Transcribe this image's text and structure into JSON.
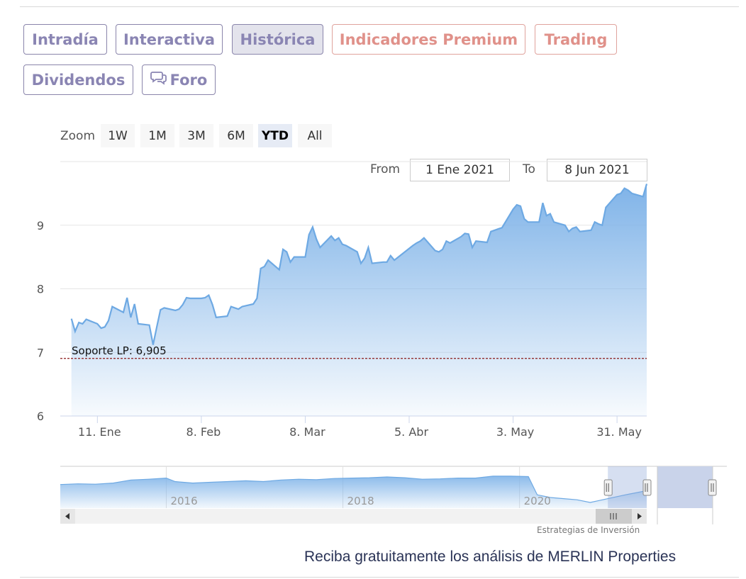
{
  "tabs": [
    {
      "label": "Intradía"
    },
    {
      "label": "Interactiva"
    },
    {
      "label": "Histórica"
    },
    {
      "label": "Indicadores Premium"
    },
    {
      "label": "Trading"
    },
    {
      "label": "Dividendos"
    },
    {
      "label": "Foro"
    }
  ],
  "active_tab": "Histórica",
  "zoom": {
    "label": "Zoom",
    "buttons": [
      "1W",
      "1M",
      "3M",
      "6M",
      "YTD",
      "All"
    ],
    "selected": "YTD"
  },
  "range": {
    "from_label": "From",
    "from_value": "1 Ene 2021",
    "to_label": "To",
    "to_value": "8 Jun 2021"
  },
  "chart_data": {
    "type": "area",
    "xlabel": "",
    "ylabel": "",
    "ylim": [
      6,
      10
    ],
    "yticks": [
      6,
      7,
      8,
      9
    ],
    "x_axis_type": "date",
    "x_range": [
      "2021-01-01",
      "2021-06-08"
    ],
    "xtick_labels": [
      {
        "date": "2021-01-11",
        "label": "11. Ene"
      },
      {
        "date": "2021-02-08",
        "label": "8. Feb"
      },
      {
        "date": "2021-03-08",
        "label": "8. Mar"
      },
      {
        "date": "2021-04-05",
        "label": "5. Abr"
      },
      {
        "date": "2021-05-03",
        "label": "3. May"
      },
      {
        "date": "2021-05-31",
        "label": "31. May"
      }
    ],
    "series": [
      {
        "values": [
          [
            "2021-01-04",
            7.53
          ],
          [
            "2021-01-05",
            7.33
          ],
          [
            "2021-01-06",
            7.47
          ],
          [
            "2021-01-07",
            7.45
          ],
          [
            "2021-01-08",
            7.52
          ],
          [
            "2021-01-11",
            7.45
          ],
          [
            "2021-01-12",
            7.38
          ],
          [
            "2021-01-13",
            7.4
          ],
          [
            "2021-01-14",
            7.5
          ],
          [
            "2021-01-15",
            7.72
          ],
          [
            "2021-01-18",
            7.63
          ],
          [
            "2021-01-19",
            7.86
          ],
          [
            "2021-01-20",
            7.55
          ],
          [
            "2021-01-21",
            7.76
          ],
          [
            "2021-01-22",
            7.45
          ],
          [
            "2021-01-25",
            7.43
          ],
          [
            "2021-01-26",
            7.12
          ],
          [
            "2021-01-27",
            7.4
          ],
          [
            "2021-01-28",
            7.67
          ],
          [
            "2021-01-29",
            7.7
          ],
          [
            "2021-02-01",
            7.66
          ],
          [
            "2021-02-02",
            7.68
          ],
          [
            "2021-02-03",
            7.75
          ],
          [
            "2021-02-04",
            7.86
          ],
          [
            "2021-02-05",
            7.85
          ],
          [
            "2021-02-08",
            7.85
          ],
          [
            "2021-02-09",
            7.86
          ],
          [
            "2021-02-10",
            7.9
          ],
          [
            "2021-02-11",
            7.75
          ],
          [
            "2021-02-12",
            7.55
          ],
          [
            "2021-02-15",
            7.57
          ],
          [
            "2021-02-16",
            7.72
          ],
          [
            "2021-02-17",
            7.7
          ],
          [
            "2021-02-18",
            7.68
          ],
          [
            "2021-02-19",
            7.72
          ],
          [
            "2021-02-22",
            7.76
          ],
          [
            "2021-02-23",
            7.85
          ],
          [
            "2021-02-24",
            8.32
          ],
          [
            "2021-02-25",
            8.35
          ],
          [
            "2021-02-26",
            8.45
          ],
          [
            "2021-03-01",
            8.3
          ],
          [
            "2021-03-02",
            8.62
          ],
          [
            "2021-03-03",
            8.58
          ],
          [
            "2021-03-04",
            8.42
          ],
          [
            "2021-03-05",
            8.5
          ],
          [
            "2021-03-08",
            8.5
          ],
          [
            "2021-03-09",
            8.85
          ],
          [
            "2021-03-10",
            8.97
          ],
          [
            "2021-03-11",
            8.78
          ],
          [
            "2021-03-12",
            8.65
          ],
          [
            "2021-03-15",
            8.83
          ],
          [
            "2021-03-16",
            8.76
          ],
          [
            "2021-03-17",
            8.8
          ],
          [
            "2021-03-18",
            8.7
          ],
          [
            "2021-03-19",
            8.68
          ],
          [
            "2021-03-22",
            8.58
          ],
          [
            "2021-03-23",
            8.4
          ],
          [
            "2021-03-24",
            8.48
          ],
          [
            "2021-03-25",
            8.65
          ],
          [
            "2021-03-26",
            8.4
          ],
          [
            "2021-03-29",
            8.42
          ],
          [
            "2021-03-30",
            8.42
          ],
          [
            "2021-03-31",
            8.52
          ],
          [
            "2021-04-01",
            8.45
          ],
          [
            "2021-04-06",
            8.68
          ],
          [
            "2021-04-07",
            8.72
          ],
          [
            "2021-04-08",
            8.75
          ],
          [
            "2021-04-09",
            8.8
          ],
          [
            "2021-04-12",
            8.6
          ],
          [
            "2021-04-13",
            8.58
          ],
          [
            "2021-04-14",
            8.62
          ],
          [
            "2021-04-15",
            8.75
          ],
          [
            "2021-04-16",
            8.72
          ],
          [
            "2021-04-19",
            8.82
          ],
          [
            "2021-04-20",
            8.87
          ],
          [
            "2021-04-21",
            8.86
          ],
          [
            "2021-04-22",
            8.65
          ],
          [
            "2021-04-23",
            8.75
          ],
          [
            "2021-04-26",
            8.73
          ],
          [
            "2021-04-27",
            8.9
          ],
          [
            "2021-04-28",
            8.92
          ],
          [
            "2021-04-29",
            8.94
          ],
          [
            "2021-04-30",
            8.96
          ],
          [
            "2021-05-03",
            9.25
          ],
          [
            "2021-05-04",
            9.32
          ],
          [
            "2021-05-05",
            9.3
          ],
          [
            "2021-05-06",
            9.1
          ],
          [
            "2021-05-07",
            9.05
          ],
          [
            "2021-05-10",
            9.05
          ],
          [
            "2021-05-11",
            9.35
          ],
          [
            "2021-05-12",
            9.15
          ],
          [
            "2021-05-13",
            9.18
          ],
          [
            "2021-05-14",
            9.05
          ],
          [
            "2021-05-17",
            9.0
          ],
          [
            "2021-05-18",
            8.9
          ],
          [
            "2021-05-19",
            8.95
          ],
          [
            "2021-05-20",
            8.97
          ],
          [
            "2021-05-21",
            8.9
          ],
          [
            "2021-05-24",
            8.92
          ],
          [
            "2021-05-25",
            9.05
          ],
          [
            "2021-05-26",
            9.02
          ],
          [
            "2021-05-27",
            9.0
          ],
          [
            "2021-05-28",
            9.28
          ],
          [
            "2021-05-31",
            9.48
          ],
          [
            "2021-06-01",
            9.5
          ],
          [
            "2021-06-02",
            9.58
          ],
          [
            "2021-06-03",
            9.55
          ],
          [
            "2021-06-04",
            9.5
          ],
          [
            "2021-06-07",
            9.45
          ],
          [
            "2021-06-08",
            9.65
          ]
        ]
      }
    ],
    "annotations": [
      {
        "type": "horizontal-line",
        "value": 6.905,
        "label": "Soporte LP: 6,905",
        "color": "#8b1a1a",
        "style": "dashed"
      }
    ],
    "grid": true,
    "fill_color": "#7fb3e8",
    "line_color": "#6ea9e3"
  },
  "navigator": {
    "range_years": [
      2014.8,
      2021.44
    ],
    "year_labels": [
      {
        "year": 2016,
        "label": "2016"
      },
      {
        "year": 2018,
        "label": "2018"
      },
      {
        "year": 2020,
        "label": "2020"
      }
    ],
    "selection_years": [
      2021.0,
      2021.44
    ],
    "values": [
      [
        2014.8,
        11.2
      ],
      [
        2015.0,
        11.4
      ],
      [
        2015.2,
        11.3
      ],
      [
        2015.4,
        11.6
      ],
      [
        2015.6,
        12.4
      ],
      [
        2015.8,
        12.6
      ],
      [
        2016.0,
        12.9
      ],
      [
        2016.1,
        12.0
      ],
      [
        2016.3,
        11.6
      ],
      [
        2016.5,
        11.8
      ],
      [
        2016.7,
        12.0
      ],
      [
        2016.9,
        12.2
      ],
      [
        2017.1,
        12.0
      ],
      [
        2017.3,
        12.4
      ],
      [
        2017.5,
        12.6
      ],
      [
        2017.7,
        12.5
      ],
      [
        2017.9,
        12.8
      ],
      [
        2018.1,
        12.9
      ],
      [
        2018.3,
        13.0
      ],
      [
        2018.5,
        13.2
      ],
      [
        2018.7,
        13.0
      ],
      [
        2018.9,
        12.6
      ],
      [
        2019.1,
        12.7
      ],
      [
        2019.3,
        12.9
      ],
      [
        2019.5,
        12.9
      ],
      [
        2019.7,
        13.4
      ],
      [
        2019.9,
        13.4
      ],
      [
        2020.1,
        13.3
      ],
      [
        2020.2,
        8.5
      ],
      [
        2020.35,
        7.8
      ],
      [
        2020.5,
        7.5
      ],
      [
        2020.65,
        7.2
      ],
      [
        2020.8,
        6.5
      ],
      [
        2020.9,
        7.0
      ],
      [
        2021.0,
        7.5
      ],
      [
        2021.2,
        8.5
      ],
      [
        2021.44,
        9.6
      ]
    ]
  },
  "credit": "Estrategias de Inversión",
  "cta_text": "Reciba gratuitamente los análisis de MERLIN Properties"
}
